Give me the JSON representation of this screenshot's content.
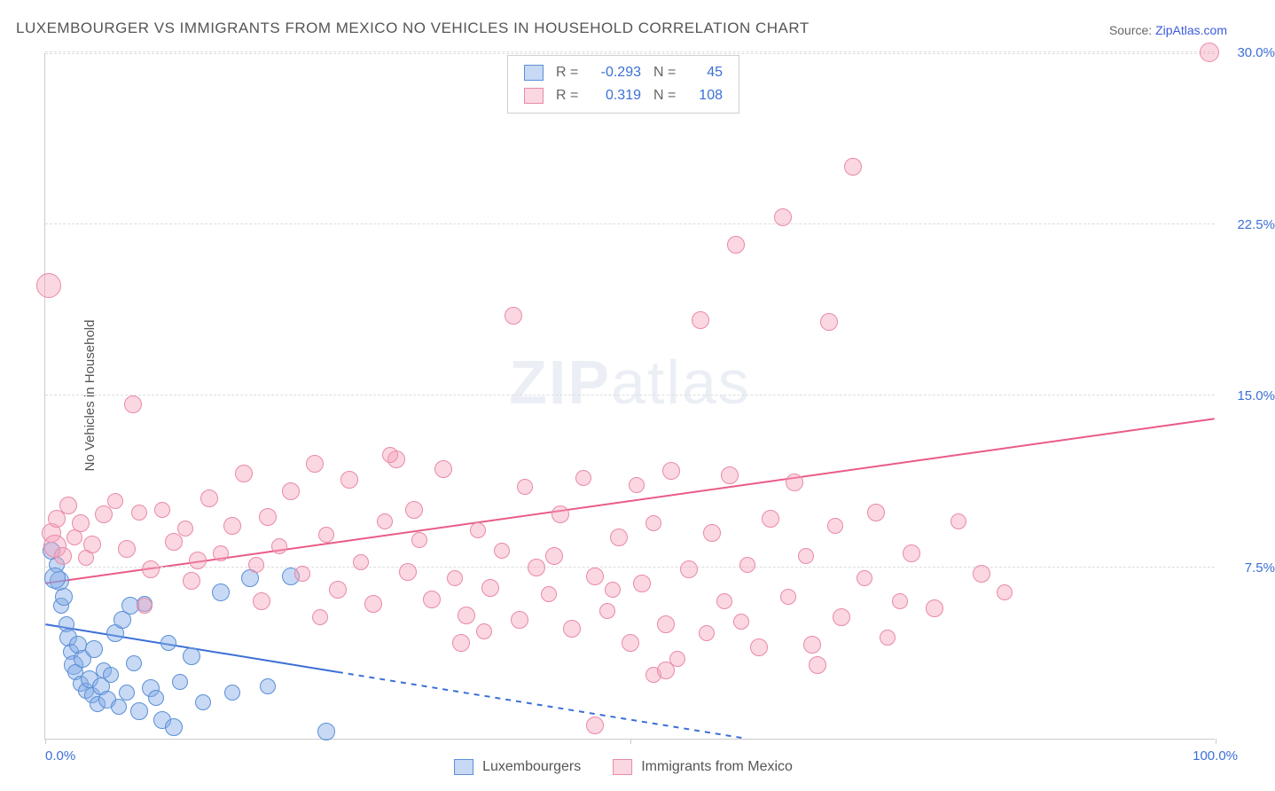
{
  "title": "LUXEMBOURGER VS IMMIGRANTS FROM MEXICO NO VEHICLES IN HOUSEHOLD CORRELATION CHART",
  "source_prefix": "Source: ",
  "source_link": "ZipAtlas.com",
  "y_axis_title": "No Vehicles in Household",
  "watermark": "ZIPatlas",
  "chart": {
    "type": "scatter",
    "xlim": [
      0,
      100
    ],
    "ylim": [
      0,
      30
    ],
    "x_ticks": [
      0,
      50,
      100
    ],
    "x_tick_labels": [
      "0.0%",
      "",
      "100.0%"
    ],
    "y_ticks": [
      7.5,
      15.0,
      22.5,
      30.0
    ],
    "y_tick_labels": [
      "7.5%",
      "15.0%",
      "22.5%",
      "30.0%"
    ],
    "grid_color": "#dddddd",
    "background_color": "#ffffff",
    "axis_color": "#cccccc",
    "tick_label_color": "#3b6fd6",
    "axis_title_color": "#555555",
    "title_color": "#555555"
  },
  "series": [
    {
      "name": "Luxembourgers",
      "fill_color": "rgba(130,170,230,0.45)",
      "stroke_color": "#5b8fd6",
      "r_value": "-0.293",
      "n_value": "45",
      "trend": {
        "x1": 0,
        "y1": 5.0,
        "x2": 60,
        "y2": 0,
        "color": "#3b6fd6",
        "dash_after_x": 25
      },
      "points": [
        {
          "x": 0.5,
          "y": 8.2,
          "r": 10
        },
        {
          "x": 1.0,
          "y": 7.6,
          "r": 9
        },
        {
          "x": 1.2,
          "y": 6.9,
          "r": 11
        },
        {
          "x": 1.4,
          "y": 5.8,
          "r": 9
        },
        {
          "x": 1.6,
          "y": 6.2,
          "r": 10
        },
        {
          "x": 1.8,
          "y": 5.0,
          "r": 9
        },
        {
          "x": 2.0,
          "y": 4.4,
          "r": 10
        },
        {
          "x": 2.2,
          "y": 3.8,
          "r": 9
        },
        {
          "x": 2.4,
          "y": 3.2,
          "r": 11
        },
        {
          "x": 2.6,
          "y": 2.9,
          "r": 9
        },
        {
          "x": 2.8,
          "y": 4.1,
          "r": 10
        },
        {
          "x": 3.0,
          "y": 2.4,
          "r": 9
        },
        {
          "x": 3.2,
          "y": 3.5,
          "r": 10
        },
        {
          "x": 3.5,
          "y": 2.1,
          "r": 9
        },
        {
          "x": 3.8,
          "y": 2.6,
          "r": 10
        },
        {
          "x": 4.0,
          "y": 1.9,
          "r": 9
        },
        {
          "x": 4.2,
          "y": 3.9,
          "r": 10
        },
        {
          "x": 4.5,
          "y": 1.5,
          "r": 9
        },
        {
          "x": 4.8,
          "y": 2.3,
          "r": 10
        },
        {
          "x": 5.0,
          "y": 3.0,
          "r": 9
        },
        {
          "x": 5.3,
          "y": 1.7,
          "r": 10
        },
        {
          "x": 5.6,
          "y": 2.8,
          "r": 9
        },
        {
          "x": 6.0,
          "y": 4.6,
          "r": 10
        },
        {
          "x": 6.3,
          "y": 1.4,
          "r": 9
        },
        {
          "x": 6.6,
          "y": 5.2,
          "r": 10
        },
        {
          "x": 7.0,
          "y": 2.0,
          "r": 9
        },
        {
          "x": 7.3,
          "y": 5.8,
          "r": 10
        },
        {
          "x": 7.6,
          "y": 3.3,
          "r": 9
        },
        {
          "x": 8.0,
          "y": 1.2,
          "r": 10
        },
        {
          "x": 8.5,
          "y": 5.9,
          "r": 9
        },
        {
          "x": 9.0,
          "y": 2.2,
          "r": 10
        },
        {
          "x": 9.5,
          "y": 1.8,
          "r": 9
        },
        {
          "x": 10.0,
          "y": 0.8,
          "r": 10
        },
        {
          "x": 10.5,
          "y": 4.2,
          "r": 9
        },
        {
          "x": 11.0,
          "y": 0.5,
          "r": 10
        },
        {
          "x": 11.5,
          "y": 2.5,
          "r": 9
        },
        {
          "x": 12.5,
          "y": 3.6,
          "r": 10
        },
        {
          "x": 13.5,
          "y": 1.6,
          "r": 9
        },
        {
          "x": 15.0,
          "y": 6.4,
          "r": 10
        },
        {
          "x": 16.0,
          "y": 2.0,
          "r": 9
        },
        {
          "x": 17.5,
          "y": 7.0,
          "r": 10
        },
        {
          "x": 19.0,
          "y": 2.3,
          "r": 9
        },
        {
          "x": 21.0,
          "y": 7.1,
          "r": 10
        },
        {
          "x": 24.0,
          "y": 0.3,
          "r": 10
        },
        {
          "x": 0.8,
          "y": 7.0,
          "r": 12
        }
      ]
    },
    {
      "name": "Immigrants from Mexico",
      "fill_color": "rgba(245,160,185,0.42)",
      "stroke_color": "#e88aa6",
      "r_value": "0.319",
      "n_value": "108",
      "trend": {
        "x1": 0,
        "y1": 6.8,
        "x2": 100,
        "y2": 14.0,
        "color": "#e95b86",
        "dash_after_x": 100
      },
      "points": [
        {
          "x": 0.3,
          "y": 19.8,
          "r": 14
        },
        {
          "x": 0.5,
          "y": 9.0,
          "r": 11
        },
        {
          "x": 0.8,
          "y": 8.4,
          "r": 13
        },
        {
          "x": 1.0,
          "y": 9.6,
          "r": 10
        },
        {
          "x": 1.5,
          "y": 8.0,
          "r": 10
        },
        {
          "x": 2.0,
          "y": 10.2,
          "r": 10
        },
        {
          "x": 2.5,
          "y": 8.8,
          "r": 9
        },
        {
          "x": 3.0,
          "y": 9.4,
          "r": 10
        },
        {
          "x": 3.5,
          "y": 7.9,
          "r": 9
        },
        {
          "x": 4.0,
          "y": 8.5,
          "r": 10
        },
        {
          "x": 5.0,
          "y": 9.8,
          "r": 10
        },
        {
          "x": 6.0,
          "y": 10.4,
          "r": 9
        },
        {
          "x": 7.0,
          "y": 8.3,
          "r": 10
        },
        {
          "x": 7.5,
          "y": 14.6,
          "r": 10
        },
        {
          "x": 8.0,
          "y": 9.9,
          "r": 9
        },
        {
          "x": 9.0,
          "y": 7.4,
          "r": 10
        },
        {
          "x": 10.0,
          "y": 10.0,
          "r": 9
        },
        {
          "x": 11.0,
          "y": 8.6,
          "r": 10
        },
        {
          "x": 12.0,
          "y": 9.2,
          "r": 9
        },
        {
          "x": 13.0,
          "y": 7.8,
          "r": 10
        },
        {
          "x": 14.0,
          "y": 10.5,
          "r": 10
        },
        {
          "x": 15.0,
          "y": 8.1,
          "r": 9
        },
        {
          "x": 16.0,
          "y": 9.3,
          "r": 10
        },
        {
          "x": 17.0,
          "y": 11.6,
          "r": 10
        },
        {
          "x": 18.0,
          "y": 7.6,
          "r": 9
        },
        {
          "x": 19.0,
          "y": 9.7,
          "r": 10
        },
        {
          "x": 20.0,
          "y": 8.4,
          "r": 9
        },
        {
          "x": 21.0,
          "y": 10.8,
          "r": 10
        },
        {
          "x": 22.0,
          "y": 7.2,
          "r": 9
        },
        {
          "x": 23.0,
          "y": 12.0,
          "r": 10
        },
        {
          "x": 24.0,
          "y": 8.9,
          "r": 9
        },
        {
          "x": 25.0,
          "y": 6.5,
          "r": 10
        },
        {
          "x": 26.0,
          "y": 11.3,
          "r": 10
        },
        {
          "x": 27.0,
          "y": 7.7,
          "r": 9
        },
        {
          "x": 28.0,
          "y": 5.9,
          "r": 10
        },
        {
          "x": 29.0,
          "y": 9.5,
          "r": 9
        },
        {
          "x": 30.0,
          "y": 12.2,
          "r": 10
        },
        {
          "x": 31.0,
          "y": 7.3,
          "r": 10
        },
        {
          "x": 32.0,
          "y": 8.7,
          "r": 9
        },
        {
          "x": 33.0,
          "y": 6.1,
          "r": 10
        },
        {
          "x": 34.0,
          "y": 11.8,
          "r": 10
        },
        {
          "x": 35.0,
          "y": 7.0,
          "r": 9
        },
        {
          "x": 36.0,
          "y": 5.4,
          "r": 10
        },
        {
          "x": 37.0,
          "y": 9.1,
          "r": 9
        },
        {
          "x": 38.0,
          "y": 6.6,
          "r": 10
        },
        {
          "x": 39.0,
          "y": 8.2,
          "r": 9
        },
        {
          "x": 40.0,
          "y": 18.5,
          "r": 10
        },
        {
          "x": 40.5,
          "y": 5.2,
          "r": 10
        },
        {
          "x": 41.0,
          "y": 11.0,
          "r": 9
        },
        {
          "x": 42.0,
          "y": 7.5,
          "r": 10
        },
        {
          "x": 43.0,
          "y": 6.3,
          "r": 9
        },
        {
          "x": 44.0,
          "y": 9.8,
          "r": 10
        },
        {
          "x": 45.0,
          "y": 4.8,
          "r": 10
        },
        {
          "x": 46.0,
          "y": 11.4,
          "r": 9
        },
        {
          "x": 47.0,
          "y": 7.1,
          "r": 10
        },
        {
          "x": 48.0,
          "y": 5.6,
          "r": 9
        },
        {
          "x": 49.0,
          "y": 8.8,
          "r": 10
        },
        {
          "x": 50.0,
          "y": 4.2,
          "r": 10
        },
        {
          "x": 50.5,
          "y": 11.1,
          "r": 9
        },
        {
          "x": 51.0,
          "y": 6.8,
          "r": 10
        },
        {
          "x": 52.0,
          "y": 9.4,
          "r": 9
        },
        {
          "x": 53.0,
          "y": 5.0,
          "r": 10
        },
        {
          "x": 53.5,
          "y": 11.7,
          "r": 10
        },
        {
          "x": 54.0,
          "y": 3.5,
          "r": 9
        },
        {
          "x": 55.0,
          "y": 7.4,
          "r": 10
        },
        {
          "x": 56.0,
          "y": 18.3,
          "r": 10
        },
        {
          "x": 56.5,
          "y": 4.6,
          "r": 9
        },
        {
          "x": 57.0,
          "y": 9.0,
          "r": 10
        },
        {
          "x": 58.0,
          "y": 6.0,
          "r": 9
        },
        {
          "x": 58.5,
          "y": 11.5,
          "r": 10
        },
        {
          "x": 59.0,
          "y": 21.6,
          "r": 10
        },
        {
          "x": 60.0,
          "y": 7.6,
          "r": 9
        },
        {
          "x": 61.0,
          "y": 4.0,
          "r": 10
        },
        {
          "x": 62.0,
          "y": 9.6,
          "r": 10
        },
        {
          "x": 63.0,
          "y": 22.8,
          "r": 10
        },
        {
          "x": 63.5,
          "y": 6.2,
          "r": 9
        },
        {
          "x": 64.0,
          "y": 11.2,
          "r": 10
        },
        {
          "x": 65.0,
          "y": 8.0,
          "r": 9
        },
        {
          "x": 66.0,
          "y": 3.2,
          "r": 10
        },
        {
          "x": 67.0,
          "y": 18.2,
          "r": 10
        },
        {
          "x": 67.5,
          "y": 9.3,
          "r": 9
        },
        {
          "x": 68.0,
          "y": 5.3,
          "r": 10
        },
        {
          "x": 69.0,
          "y": 25.0,
          "r": 10
        },
        {
          "x": 70.0,
          "y": 7.0,
          "r": 9
        },
        {
          "x": 71.0,
          "y": 9.9,
          "r": 10
        },
        {
          "x": 72.0,
          "y": 4.4,
          "r": 9
        },
        {
          "x": 74.0,
          "y": 8.1,
          "r": 10
        },
        {
          "x": 76.0,
          "y": 5.7,
          "r": 10
        },
        {
          "x": 78.0,
          "y": 9.5,
          "r": 9
        },
        {
          "x": 80.0,
          "y": 7.2,
          "r": 10
        },
        {
          "x": 82.0,
          "y": 6.4,
          "r": 9
        },
        {
          "x": 47.0,
          "y": 0.6,
          "r": 10
        },
        {
          "x": 52.0,
          "y": 2.8,
          "r": 9
        },
        {
          "x": 35.5,
          "y": 4.2,
          "r": 10
        },
        {
          "x": 29.5,
          "y": 12.4,
          "r": 9
        },
        {
          "x": 18.5,
          "y": 6.0,
          "r": 10
        },
        {
          "x": 23.5,
          "y": 5.3,
          "r": 9
        },
        {
          "x": 12.5,
          "y": 6.9,
          "r": 10
        },
        {
          "x": 8.5,
          "y": 5.8,
          "r": 9
        },
        {
          "x": 31.5,
          "y": 10.0,
          "r": 10
        },
        {
          "x": 37.5,
          "y": 4.7,
          "r": 9
        },
        {
          "x": 43.5,
          "y": 8.0,
          "r": 10
        },
        {
          "x": 48.5,
          "y": 6.5,
          "r": 9
        },
        {
          "x": 53.0,
          "y": 3.0,
          "r": 10
        },
        {
          "x": 59.5,
          "y": 5.1,
          "r": 9
        },
        {
          "x": 65.5,
          "y": 4.1,
          "r": 10
        },
        {
          "x": 73.0,
          "y": 6.0,
          "r": 9
        },
        {
          "x": 99.5,
          "y": 30.0,
          "r": 11
        }
      ]
    }
  ],
  "legend": {
    "items": [
      "Luxembourgers",
      "Immigrants from Mexico"
    ]
  },
  "stats_box": {
    "r_label": "R =",
    "n_label": "N ="
  }
}
